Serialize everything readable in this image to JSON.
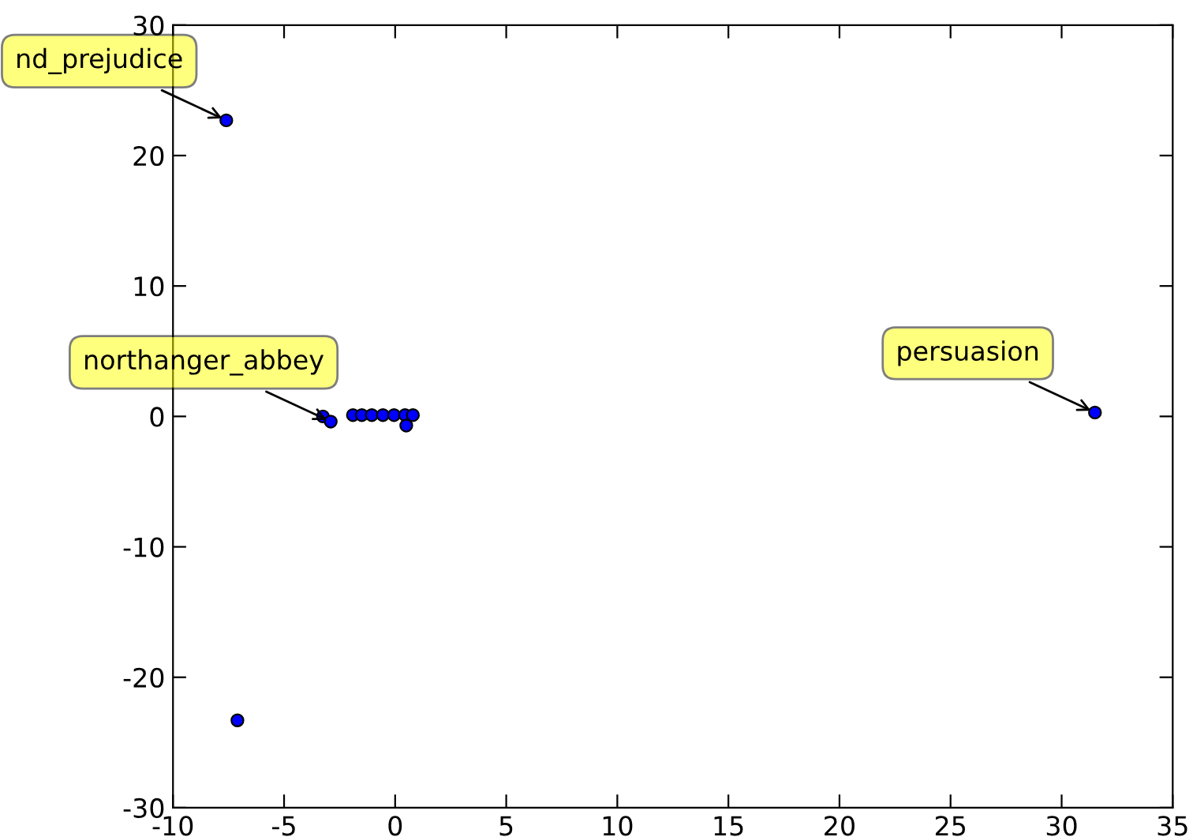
{
  "chart_data": {
    "type": "scatter",
    "x": [
      -7.6,
      31.5,
      -7.1,
      -3.25,
      -2.9,
      -1.9,
      -1.5,
      -1.05,
      -0.55,
      -0.05,
      0.45,
      0.8,
      0.5
    ],
    "values": [
      22.7,
      0.3,
      -23.3,
      0.0,
      -0.4,
      0.1,
      0.1,
      0.1,
      0.1,
      0.1,
      0.1,
      0.1,
      -0.7
    ],
    "color": "#0000ff",
    "marker": "circle",
    "xlim": [
      -10,
      35
    ],
    "ylim": [
      -30,
      30
    ],
    "xticks": [
      -10,
      -5,
      0,
      5,
      10,
      15,
      20,
      25,
      30,
      35
    ],
    "yticks": [
      -30,
      -20,
      -10,
      0,
      10,
      20,
      30
    ],
    "annotations": [
      {
        "text": "nd_prejudice",
        "x": -7.6,
        "y": 22.7
      },
      {
        "text": "persuasion",
        "x": 31.5,
        "y": 0.3
      },
      {
        "text": "northanger_abbey",
        "x": -2.9,
        "y": -0.4
      }
    ]
  }
}
